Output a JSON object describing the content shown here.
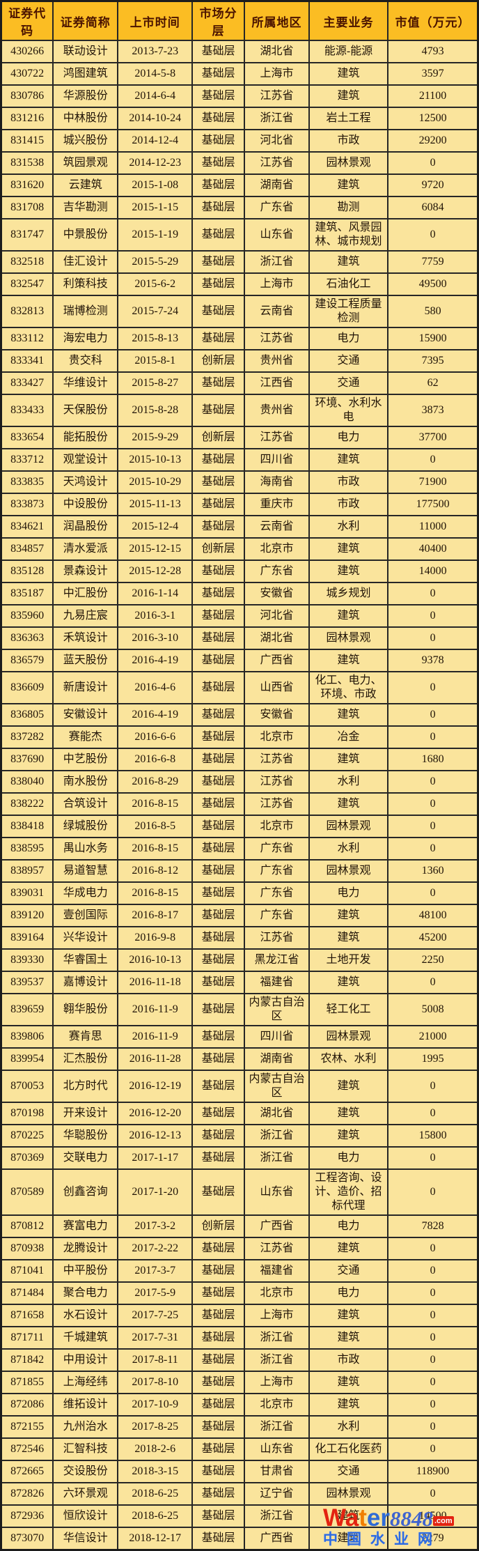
{
  "table": {
    "columns": [
      "证券代码",
      "证券简称",
      "上市时间",
      "市场分层",
      "所属地区",
      "主要业务",
      "市值（万元）"
    ],
    "column_keys": [
      "code",
      "name",
      "list-date",
      "market-layer",
      "region",
      "main-business",
      "market-cap"
    ],
    "rows": [
      [
        "430266",
        "联动设计",
        "2013-7-23",
        "基础层",
        "湖北省",
        "能源-能源",
        "4793"
      ],
      [
        "430722",
        "鸿图建筑",
        "2014-5-8",
        "基础层",
        "上海市",
        "建筑",
        "3597"
      ],
      [
        "830786",
        "华源股份",
        "2014-6-4",
        "基础层",
        "江苏省",
        "建筑",
        "21100"
      ],
      [
        "831216",
        "中林股份",
        "2014-10-24",
        "基础层",
        "浙江省",
        "岩土工程",
        "12500"
      ],
      [
        "831415",
        "城兴股份",
        "2014-12-4",
        "基础层",
        "河北省",
        "市政",
        "29200"
      ],
      [
        "831538",
        "筑园景观",
        "2014-12-23",
        "基础层",
        "江苏省",
        "园林景观",
        "0"
      ],
      [
        "831620",
        "云建筑",
        "2015-1-08",
        "基础层",
        "湖南省",
        "建筑",
        "9720"
      ],
      [
        "831708",
        "吉华勘测",
        "2015-1-15",
        "基础层",
        "广东省",
        "勘测",
        "6084"
      ],
      [
        "831747",
        "中景股份",
        "2015-1-19",
        "基础层",
        "山东省",
        "建筑、风景园林、城市规划",
        "0"
      ],
      [
        "832518",
        "佳汇设计",
        "2015-5-29",
        "基础层",
        "浙江省",
        "建筑",
        "7759"
      ],
      [
        "832547",
        "利策科技",
        "2015-6-2",
        "基础层",
        "上海市",
        "石油化工",
        "49500"
      ],
      [
        "832813",
        "瑞博检测",
        "2015-7-24",
        "基础层",
        "云南省",
        "建设工程质量检测",
        "580"
      ],
      [
        "833112",
        "海宏电力",
        "2015-8-13",
        "基础层",
        "江苏省",
        "电力",
        "15900"
      ],
      [
        "833341",
        "贵交科",
        "2015-8-1",
        "创新层",
        "贵州省",
        "交通",
        "7395"
      ],
      [
        "833427",
        "华维设计",
        "2015-8-27",
        "基础层",
        "江西省",
        "交通",
        "62"
      ],
      [
        "833433",
        "天保股份",
        "2015-8-28",
        "基础层",
        "贵州省",
        "环境、水利水电",
        "3873"
      ],
      [
        "833654",
        "能拓股份",
        "2015-9-29",
        "创新层",
        "江苏省",
        "电力",
        "37700"
      ],
      [
        "833712",
        "观堂设计",
        "2015-10-13",
        "基础层",
        "四川省",
        "建筑",
        "0"
      ],
      [
        "833835",
        "天鸿设计",
        "2015-10-29",
        "基础层",
        "海南省",
        "市政",
        "71900"
      ],
      [
        "833873",
        "中设股份",
        "2015-11-13",
        "基础层",
        "重庆市",
        "市政",
        "177500"
      ],
      [
        "834621",
        "润晶股份",
        "2015-12-4",
        "基础层",
        "云南省",
        "水利",
        "11000"
      ],
      [
        "834857",
        "清水爱派",
        "2015-12-15",
        "创新层",
        "北京市",
        "建筑",
        "40400"
      ],
      [
        "835128",
        "景森设计",
        "2015-12-28",
        "基础层",
        "广东省",
        "建筑",
        "14000"
      ],
      [
        "835187",
        "中汇股份",
        "2016-1-14",
        "基础层",
        "安徽省",
        "城乡规划",
        "0"
      ],
      [
        "835960",
        "九易庄宸",
        "2016-3-1",
        "基础层",
        "河北省",
        "建筑",
        "0"
      ],
      [
        "836363",
        "禾筑设计",
        "2016-3-10",
        "基础层",
        "湖北省",
        "园林景观",
        "0"
      ],
      [
        "836579",
        "蓝天股份",
        "2016-4-19",
        "基础层",
        "广西省",
        "建筑",
        "9378"
      ],
      [
        "836609",
        "新唐设计",
        "2016-4-6",
        "基础层",
        "山西省",
        "化工、电力、环境、市政",
        "0"
      ],
      [
        "836805",
        "安徽设计",
        "2016-4-19",
        "基础层",
        "安徽省",
        "建筑",
        "0"
      ],
      [
        "837282",
        "赛能杰",
        "2016-6-6",
        "基础层",
        "北京市",
        "冶金",
        "0"
      ],
      [
        "837690",
        "中艺股份",
        "2016-6-8",
        "基础层",
        "江苏省",
        "建筑",
        "1680"
      ],
      [
        "838040",
        "南水股份",
        "2016-8-29",
        "基础层",
        "江苏省",
        "水利",
        "0"
      ],
      [
        "838222",
        "合筑设计",
        "2016-8-15",
        "基础层",
        "江苏省",
        "建筑",
        "0"
      ],
      [
        "838418",
        "绿城股份",
        "2016-8-5",
        "基础层",
        "北京市",
        "园林景观",
        "0"
      ],
      [
        "838595",
        "禺山水务",
        "2016-8-15",
        "基础层",
        "广东省",
        "水利",
        "0"
      ],
      [
        "838957",
        "易道智慧",
        "2016-8-12",
        "基础层",
        "广东省",
        "园林景观",
        "1360"
      ],
      [
        "839031",
        "华成电力",
        "2016-8-15",
        "基础层",
        "广东省",
        "电力",
        "0"
      ],
      [
        "839120",
        "壹创国际",
        "2016-8-17",
        "基础层",
        "广东省",
        "建筑",
        "48100"
      ],
      [
        "839164",
        "兴华设计",
        "2016-9-8",
        "基础层",
        "江苏省",
        "建筑",
        "45200"
      ],
      [
        "839330",
        "华睿国土",
        "2016-10-13",
        "基础层",
        "黑龙江省",
        "土地开发",
        "2250"
      ],
      [
        "839537",
        "嘉博设计",
        "2016-11-18",
        "基础层",
        "福建省",
        "建筑",
        "0"
      ],
      [
        "839659",
        "翱华股份",
        "2016-11-9",
        "基础层",
        "内蒙古自治区",
        "轻工化工",
        "5008"
      ],
      [
        "839806",
        "赛肯思",
        "2016-11-9",
        "基础层",
        "四川省",
        "园林景观",
        "21000"
      ],
      [
        "839954",
        "汇杰股份",
        "2016-11-28",
        "基础层",
        "湖南省",
        "农林、水利",
        "1995"
      ],
      [
        "870053",
        "北方时代",
        "2016-12-19",
        "基础层",
        "内蒙古自治区",
        "建筑",
        "0"
      ],
      [
        "870198",
        "开来设计",
        "2016-12-20",
        "基础层",
        "湖北省",
        "建筑",
        "0"
      ],
      [
        "870225",
        "华聪股份",
        "2016-12-13",
        "基础层",
        "浙江省",
        "建筑",
        "15800"
      ],
      [
        "870369",
        "交联电力",
        "2017-1-17",
        "基础层",
        "浙江省",
        "电力",
        "0"
      ],
      [
        "870589",
        "创鑫咨询",
        "2017-1-20",
        "基础层",
        "山东省",
        "工程咨询、设计、造价、招标代理",
        "0"
      ],
      [
        "870812",
        "赛富电力",
        "2017-3-2",
        "创新层",
        "广西省",
        "电力",
        "7828"
      ],
      [
        "870938",
        "龙腾设计",
        "2017-2-22",
        "基础层",
        "江苏省",
        "建筑",
        "0"
      ],
      [
        "871041",
        "中平股份",
        "2017-3-7",
        "基础层",
        "福建省",
        "交通",
        "0"
      ],
      [
        "871484",
        "聚合电力",
        "2017-5-9",
        "基础层",
        "北京市",
        "电力",
        "0"
      ],
      [
        "871658",
        "水石设计",
        "2017-7-25",
        "基础层",
        "上海市",
        "建筑",
        "0"
      ],
      [
        "871711",
        "千城建筑",
        "2017-7-31",
        "基础层",
        "浙江省",
        "建筑",
        "0"
      ],
      [
        "871842",
        "中用设计",
        "2017-8-11",
        "基础层",
        "浙江省",
        "市政",
        "0"
      ],
      [
        "871855",
        "上海经纬",
        "2017-8-10",
        "基础层",
        "上海市",
        "建筑",
        "0"
      ],
      [
        "872086",
        "维拓设计",
        "2017-10-9",
        "基础层",
        "北京市",
        "建筑",
        "0"
      ],
      [
        "872155",
        "九州治水",
        "2017-8-25",
        "基础层",
        "浙江省",
        "水利",
        "0"
      ],
      [
        "872546",
        "汇智科技",
        "2018-2-6",
        "基础层",
        "山东省",
        "化工石化医药",
        "0"
      ],
      [
        "872665",
        "交设股份",
        "2018-3-15",
        "基础层",
        "甘肃省",
        "交通",
        "118900"
      ],
      [
        "872826",
        "六环景观",
        "2018-6-25",
        "基础层",
        "辽宁省",
        "园林景观",
        "0"
      ],
      [
        "872936",
        "恒欣设计",
        "2018-6-25",
        "基础层",
        "浙江省",
        "建筑",
        "14500"
      ],
      [
        "873070",
        "华信设计",
        "2018-12-17",
        "基础层",
        "广西省",
        "建筑",
        "2279"
      ]
    ]
  },
  "watermark": {
    "part_red": "Wa",
    "part_orange": "t",
    "part_blue": "er",
    "number": "8848",
    "suffix": ".com",
    "line2": "中国水业网"
  },
  "colors": {
    "header_bg": "#fbbd23",
    "header_text": "#4a1300",
    "row_bg": "#fae49c",
    "grid_line": "#262626",
    "watermark_red": "#e32311",
    "watermark_blue": "#2d6ae0"
  }
}
